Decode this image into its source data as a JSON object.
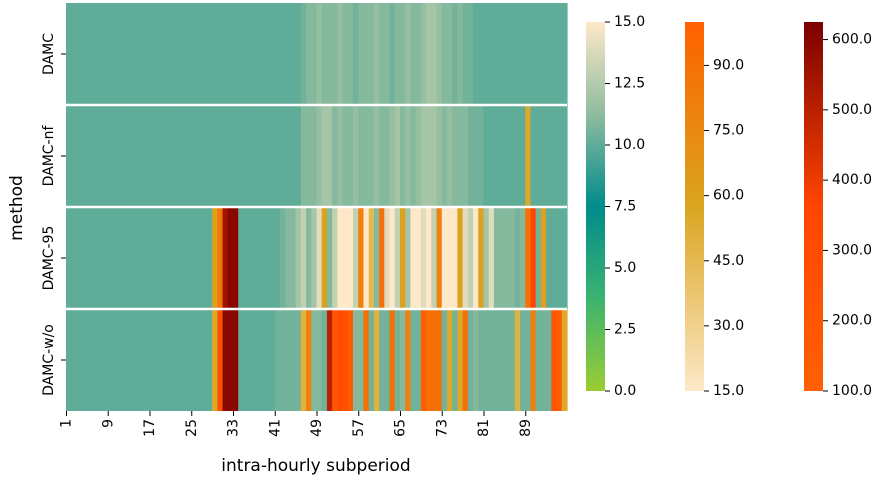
{
  "chart_data": {
    "type": "heatmap",
    "xlabel": "intra-hourly subperiod",
    "ylabel": "method",
    "rows": [
      "DAMC",
      "DAMC-nf",
      "DAMC-95",
      "DAMC-w/o"
    ],
    "x_tick_labels": [
      "1",
      "9",
      "17",
      "25",
      "33",
      "41",
      "49",
      "57",
      "65",
      "73",
      "81",
      "89"
    ],
    "n_columns": 96,
    "colorbars": [
      {
        "name": "low",
        "range": [
          0,
          15
        ],
        "ticks": [
          "0.0",
          "2.5",
          "5.0",
          "7.5",
          "10.0",
          "12.5",
          "15.0"
        ],
        "colors": [
          "#9acd32",
          "#3cb371",
          "#008b8b",
          "#8fbc9f",
          "#fde8c8"
        ]
      },
      {
        "name": "mid",
        "range": [
          15,
          100
        ],
        "ticks": [
          "15.0",
          "30.0",
          "45.0",
          "60.0",
          "75.0",
          "90.0"
        ],
        "colors": [
          "#fde8c8",
          "#daa520",
          "#ff6000"
        ]
      },
      {
        "name": "high",
        "range": [
          100,
          625
        ],
        "ticks": [
          "100.0",
          "200.0",
          "300.0",
          "400.0",
          "500.0",
          "600.0"
        ],
        "colors": [
          "#ff6000",
          "#ff4500",
          "#7b0000"
        ]
      }
    ],
    "row_values": {
      "DAMC": [
        10,
        10,
        10,
        10,
        10,
        10,
        10,
        10,
        10,
        10,
        10,
        10,
        10,
        10,
        10,
        10,
        10,
        10,
        10,
        10,
        10,
        10,
        10,
        10,
        10,
        10,
        10,
        10,
        10,
        10,
        10,
        10,
        10,
        10,
        10,
        10,
        10,
        10,
        10,
        10,
        10,
        10,
        10,
        10,
        10,
        10.5,
        11,
        11,
        11.5,
        11,
        11,
        11,
        11.5,
        11,
        11,
        10.5,
        11,
        11,
        11,
        11.5,
        11,
        11,
        10.5,
        11,
        11,
        11.5,
        11,
        11,
        11.5,
        12,
        12,
        11.5,
        11,
        11,
        10.5,
        11,
        10.5,
        10.5,
        10,
        10,
        10,
        10,
        10,
        10,
        10,
        10,
        10,
        10,
        10,
        10,
        10,
        10,
        10,
        10,
        10,
        10
      ],
      "DAMC-nf": [
        10,
        10,
        10,
        10,
        10,
        10,
        10,
        10,
        10,
        10,
        10,
        10,
        10,
        10,
        10,
        10,
        10,
        10,
        10,
        10,
        10,
        10,
        10,
        10,
        10,
        10,
        10,
        10,
        10,
        10,
        10,
        10,
        10,
        10,
        10,
        10,
        10,
        10,
        10,
        10,
        10,
        10,
        10,
        10,
        10,
        11,
        11,
        11,
        11.5,
        12,
        12,
        11,
        11.5,
        11,
        11,
        11.5,
        11,
        11,
        11,
        11.5,
        11,
        11,
        11.5,
        12,
        11,
        11.5,
        11,
        11.5,
        12,
        12,
        12,
        11.5,
        11,
        11.5,
        11,
        11,
        11,
        10.5,
        10.5,
        10.5,
        10,
        10,
        10,
        10,
        10,
        10,
        10,
        10,
        55,
        10,
        10,
        10,
        10,
        10,
        10,
        10
      ],
      "DAMC-95": [
        10,
        10,
        10,
        10,
        10,
        10,
        10,
        10,
        10,
        10,
        10,
        10,
        10,
        10,
        10,
        10,
        10,
        10,
        10,
        10,
        10,
        10,
        10,
        10,
        10,
        10,
        10,
        10,
        60,
        85,
        550,
        600,
        600,
        10,
        10,
        10,
        10,
        10,
        10,
        10,
        10,
        10.5,
        11,
        11,
        12,
        13,
        11,
        12,
        14,
        60,
        11,
        13,
        15,
        15,
        15,
        13,
        80,
        15,
        45,
        11,
        90,
        14,
        15,
        13,
        60,
        12,
        15,
        15,
        14,
        15,
        13,
        80,
        15,
        15,
        15,
        60,
        14,
        13,
        15,
        60,
        12,
        14,
        11,
        11,
        11,
        11,
        10.5,
        11,
        90,
        350,
        10.5,
        60,
        10,
        10,
        10,
        10
      ],
      "DAMC-w/o": [
        10,
        10,
        10,
        10,
        10,
        10,
        10,
        10,
        10,
        10,
        10,
        10,
        10,
        10,
        10,
        10,
        10,
        10,
        10,
        10,
        10,
        10,
        10,
        10,
        10,
        10,
        10,
        10,
        55,
        250,
        600,
        600,
        600,
        10,
        10,
        10,
        10,
        10,
        10,
        10,
        10.5,
        10.5,
        10.5,
        10.5,
        10.5,
        50,
        80,
        11,
        11,
        10.5,
        500,
        200,
        300,
        250,
        150,
        11,
        11,
        90,
        10.5,
        50,
        10.5,
        10.5,
        90,
        10.5,
        11,
        80,
        10.5,
        10.5,
        120,
        90,
        90,
        90,
        10.5,
        55,
        10.5,
        55,
        90,
        10.5,
        11,
        10.5,
        10.5,
        10.5,
        10.5,
        10.5,
        10.5,
        10.5,
        50,
        10.5,
        10.5,
        80,
        10.5,
        10.5,
        10.5,
        200,
        150,
        55
      ]
    }
  }
}
